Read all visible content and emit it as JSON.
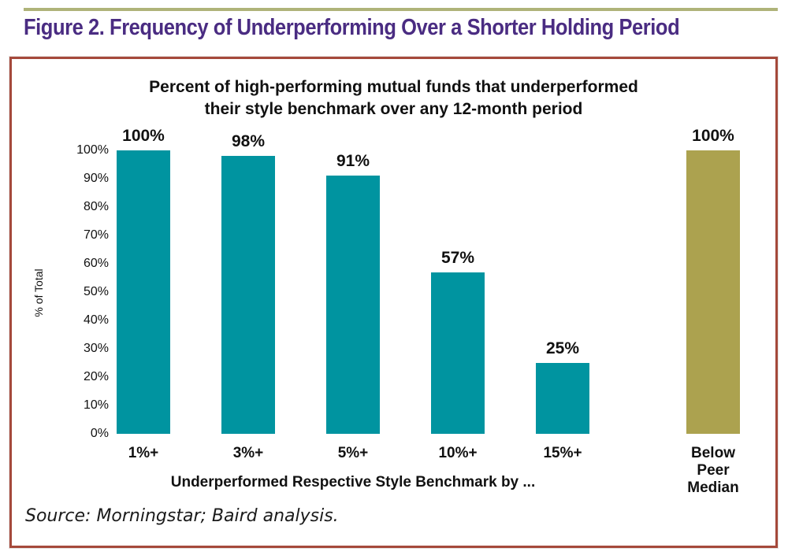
{
  "page": {
    "figure_title": "Figure 2. Frequency of Underperforming Over a Shorter Holding Period",
    "source_text": "Source: Morningstar; Baird analysis."
  },
  "colors": {
    "accent_rule_olive": "#AFB379",
    "figure_title_purple": "#4A2C82",
    "panel_border_maroon": "#A5493B",
    "bar_teal": "#0094A0",
    "bar_olive": "#ACA24F",
    "label_text": "#111111"
  },
  "chart_data": {
    "type": "bar",
    "title": "Percent of high-performing mutual funds that underperformed their style benchmark over any 12-month period",
    "title_lines": [
      "Percent of high-performing mutual funds that underperformed",
      "their style benchmark over any 12-month period"
    ],
    "categories": [
      "1%+",
      "3%+",
      "5%+",
      "10%+",
      "15%+",
      "Below Peer Median"
    ],
    "values": [
      100,
      98,
      91,
      57,
      25,
      100
    ],
    "value_labels": [
      "100%",
      "98%",
      "91%",
      "57%",
      "25%",
      "100%"
    ],
    "bar_colors": [
      "#0094A0",
      "#0094A0",
      "#0094A0",
      "#0094A0",
      "#0094A0",
      "#ACA24F"
    ],
    "xlabel": "Underperformed Respective Style Benchmark by ...",
    "ylabel": "% of Total",
    "ylim": [
      0,
      100
    ],
    "yticks": [
      "0%",
      "10%",
      "20%",
      "30%",
      "40%",
      "50%",
      "60%",
      "70%",
      "80%",
      "90%",
      "100%"
    ],
    "grid": false,
    "legend": "none"
  }
}
